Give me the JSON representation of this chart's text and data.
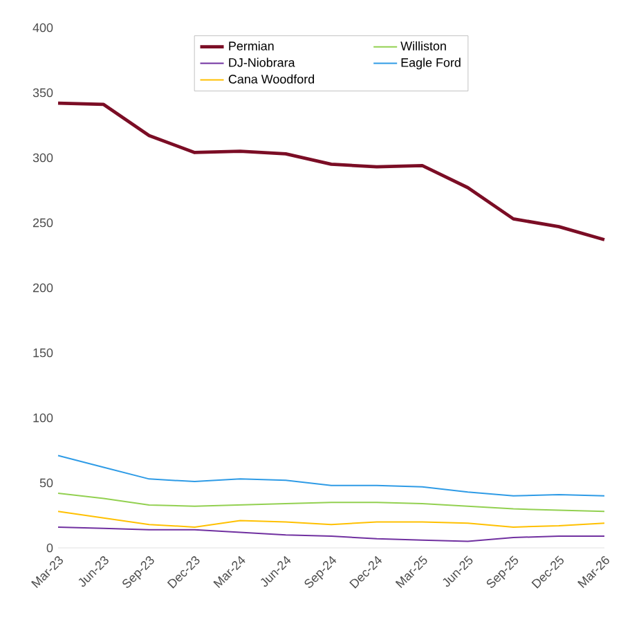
{
  "chart_data": {
    "type": "line",
    "categories": [
      "Mar-23",
      "Jun-23",
      "Sep-23",
      "Dec-23",
      "Mar-24",
      "Jun-24",
      "Sep-24",
      "Dec-24",
      "Mar-25",
      "Jun-25",
      "Sep-25",
      "Dec-25",
      "Mar-26"
    ],
    "series": [
      {
        "name": "Permian",
        "color": "#7b0d25",
        "values": [
          342,
          341,
          317,
          304,
          305,
          303,
          295,
          293,
          294,
          277,
          253,
          247,
          237
        ]
      },
      {
        "name": "Williston",
        "color": "#92d050",
        "values": [
          42,
          38,
          33,
          32,
          33,
          34,
          35,
          35,
          34,
          32,
          30,
          29,
          28
        ]
      },
      {
        "name": "DJ-Niobrara",
        "color": "#7030a0",
        "values": [
          16,
          15,
          14,
          14,
          12,
          10,
          9,
          7,
          6,
          5,
          8,
          9,
          9
        ]
      },
      {
        "name": "Eagle Ford",
        "color": "#2e9be6",
        "values": [
          71,
          62,
          53,
          51,
          53,
          52,
          48,
          48,
          47,
          43,
          40,
          41,
          40
        ]
      },
      {
        "name": "Cana Woodford",
        "color": "#ffc000",
        "values": [
          28,
          23,
          18,
          16,
          21,
          20,
          18,
          20,
          20,
          19,
          16,
          17,
          19
        ]
      }
    ],
    "ylim": [
      0,
      400
    ],
    "yticks": [
      0,
      50,
      100,
      150,
      200,
      250,
      300,
      350,
      400
    ],
    "grid": false,
    "legend": "top",
    "marker": "none",
    "line_style": "solid"
  }
}
